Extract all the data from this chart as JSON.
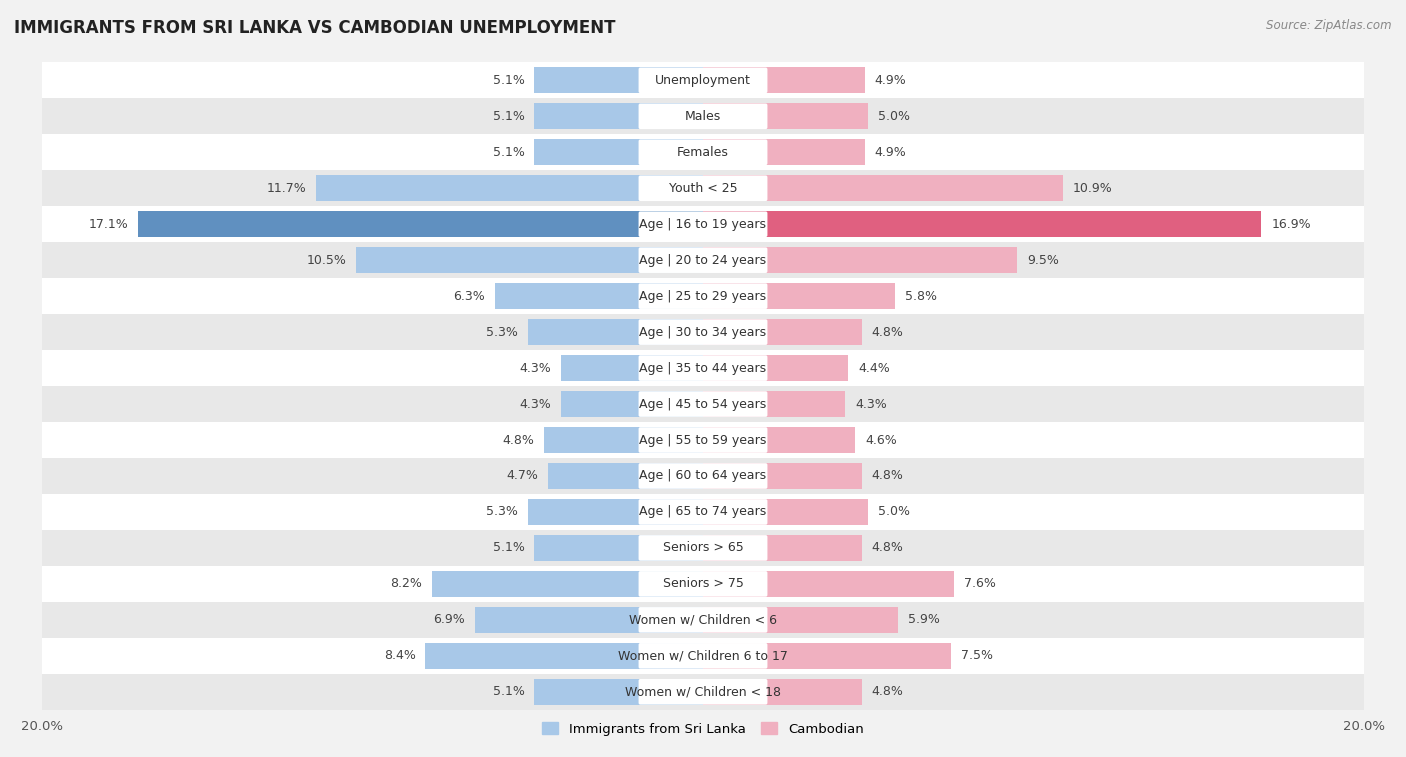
{
  "title": "IMMIGRANTS FROM SRI LANKA VS CAMBODIAN UNEMPLOYMENT",
  "source": "Source: ZipAtlas.com",
  "categories": [
    "Unemployment",
    "Males",
    "Females",
    "Youth < 25",
    "Age | 16 to 19 years",
    "Age | 20 to 24 years",
    "Age | 25 to 29 years",
    "Age | 30 to 34 years",
    "Age | 35 to 44 years",
    "Age | 45 to 54 years",
    "Age | 55 to 59 years",
    "Age | 60 to 64 years",
    "Age | 65 to 74 years",
    "Seniors > 65",
    "Seniors > 75",
    "Women w/ Children < 6",
    "Women w/ Children 6 to 17",
    "Women w/ Children < 18"
  ],
  "sri_lanka": [
    5.1,
    5.1,
    5.1,
    11.7,
    17.1,
    10.5,
    6.3,
    5.3,
    4.3,
    4.3,
    4.8,
    4.7,
    5.3,
    5.1,
    8.2,
    6.9,
    8.4,
    5.1
  ],
  "cambodian": [
    4.9,
    5.0,
    4.9,
    10.9,
    16.9,
    9.5,
    5.8,
    4.8,
    4.4,
    4.3,
    4.6,
    4.8,
    5.0,
    4.8,
    7.6,
    5.9,
    7.5,
    4.8
  ],
  "sri_lanka_color": "#a8c8e8",
  "cambodian_color": "#f0b0c0",
  "sri_lanka_highlight": "#6090c0",
  "cambodian_highlight": "#e06080",
  "highlight_row": 4,
  "axis_max": 20.0,
  "background_color": "#f2f2f2",
  "row_bg_even": "#ffffff",
  "row_bg_odd": "#e8e8e8",
  "legend_sri_lanka": "Immigrants from Sri Lanka",
  "legend_cambodian": "Cambodian",
  "label_fontsize": 9.0,
  "value_fontsize": 9.0,
  "title_fontsize": 12,
  "bar_height": 0.72
}
